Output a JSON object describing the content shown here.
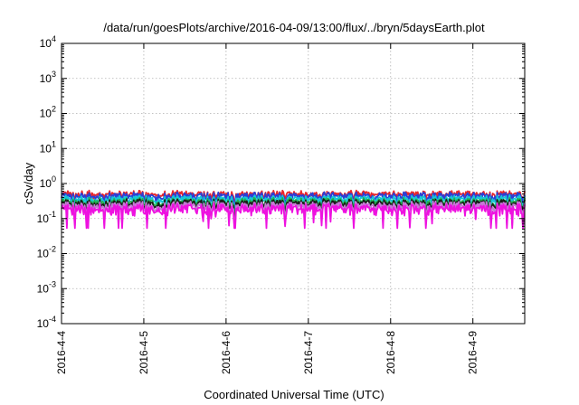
{
  "chart_data": {
    "type": "line",
    "title": "/data/run/goesPlots/archive/2016-04-09/13:00/flux/../bryn/5daysEarth.plot",
    "xlabel": "Coordinated Universal Time (UTC)",
    "ylabel": "cSv/day",
    "yscale": "log",
    "ylim": [
      0.0001,
      10000
    ],
    "xlim": [
      0,
      5.63
    ],
    "grid": true,
    "y_ticks": [
      {
        "value": 0.0001,
        "base": "10",
        "exp": "-4"
      },
      {
        "value": 0.001,
        "base": "10",
        "exp": "-3"
      },
      {
        "value": 0.01,
        "base": "10",
        "exp": "-2"
      },
      {
        "value": 0.1,
        "base": "10",
        "exp": "-1"
      },
      {
        "value": 1,
        "base": "10",
        "exp": "0"
      },
      {
        "value": 10,
        "base": "10",
        "exp": "1"
      },
      {
        "value": 100,
        "base": "10",
        "exp": "2"
      },
      {
        "value": 1000,
        "base": "10",
        "exp": "3"
      },
      {
        "value": 10000,
        "base": "10",
        "exp": "4"
      }
    ],
    "x_ticks": [
      {
        "value": 0,
        "label": "2016-4-4"
      },
      {
        "value": 1,
        "label": "2016-4-5"
      },
      {
        "value": 2,
        "label": "2016-4-6"
      },
      {
        "value": 3,
        "label": "2016-4-7"
      },
      {
        "value": 4,
        "label": "2016-4-8"
      },
      {
        "value": 5,
        "label": "2016-4-9"
      }
    ],
    "series": [
      {
        "color": "#e8262a",
        "level": 0.5,
        "noise": 0.09
      },
      {
        "color": "#2b3fd6",
        "level": 0.44,
        "noise": 0.1
      },
      {
        "color": "#16c7d9",
        "level": 0.36,
        "noise": 0.07
      },
      {
        "color": "#22b14c",
        "level": 0.3,
        "noise": 0.06
      },
      {
        "color": "#1a1a1a",
        "level": 0.27,
        "noise": 0.05
      },
      {
        "color": "#c67ad6",
        "level": 0.23,
        "noise": 0.05
      },
      {
        "color": "#ee11e0",
        "level": 0.19,
        "noise": 0.09
      }
    ]
  }
}
